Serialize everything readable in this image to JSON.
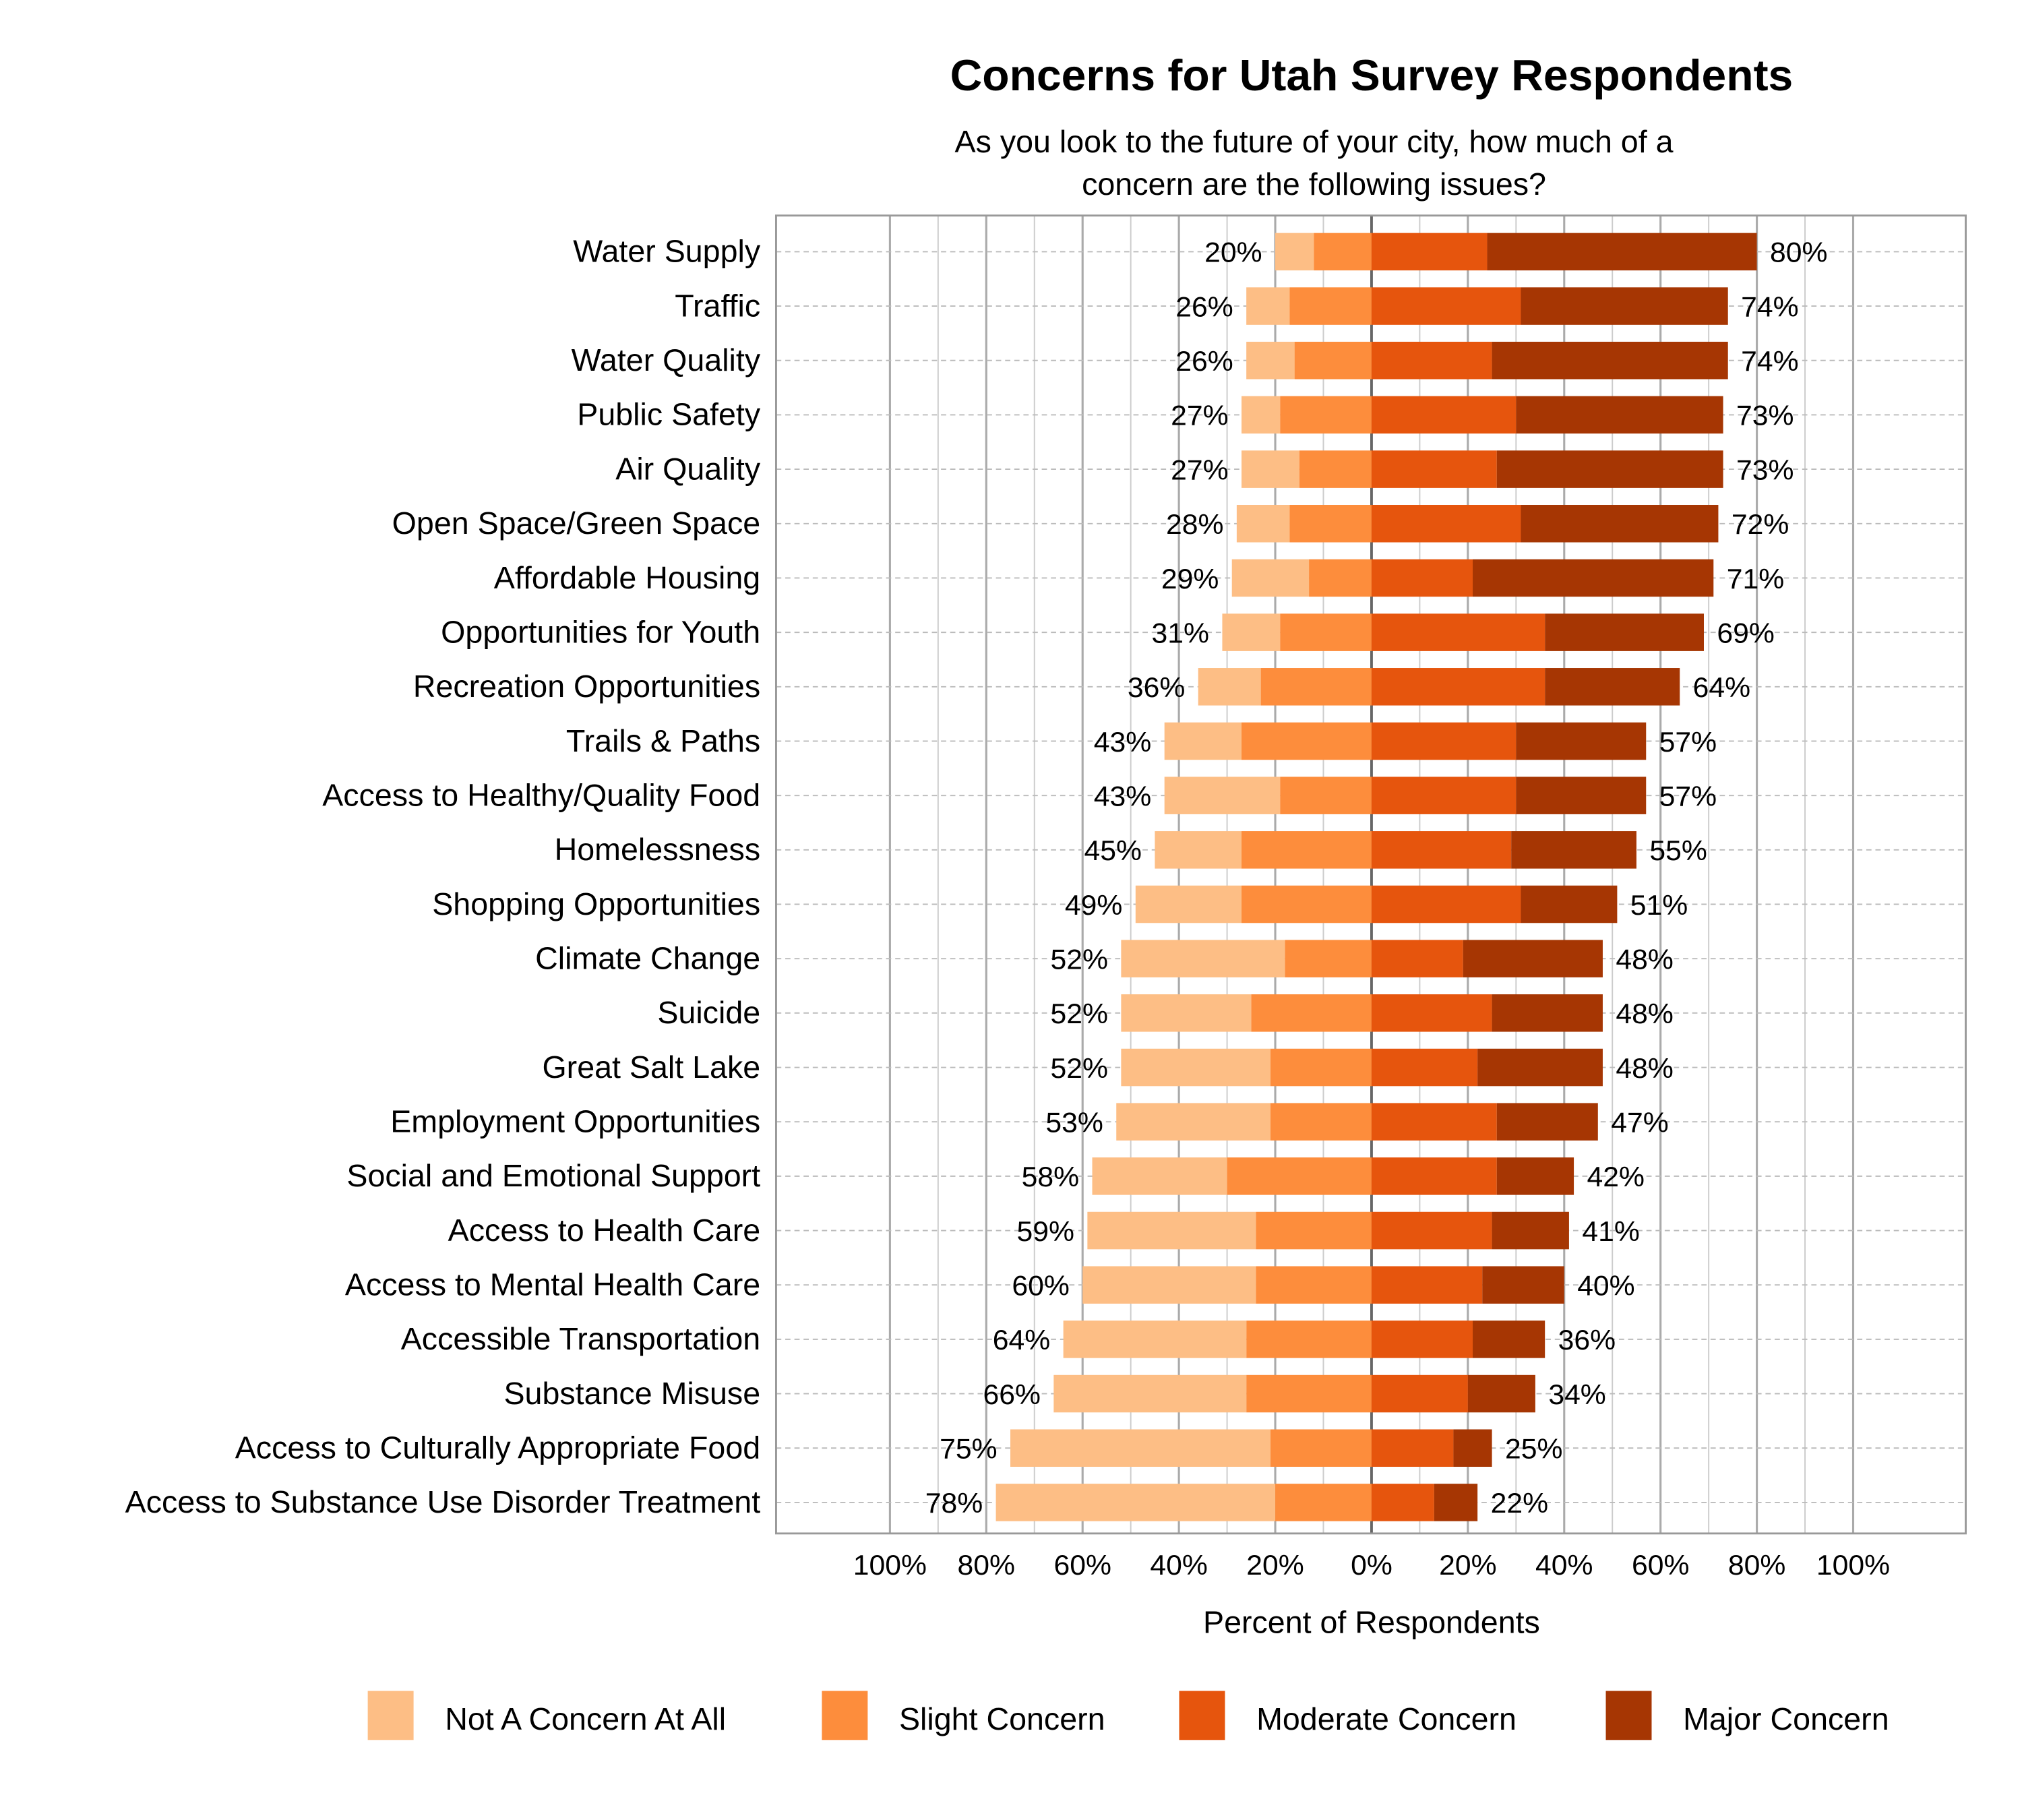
{
  "chart_data": {
    "type": "bar",
    "orientation": "horizontal",
    "stacking": "diverging",
    "title": "Concerns for Utah Survey Respondents",
    "subtitle": [
      "As you look to the future of your city, how much of a",
      "concern are the following issues?"
    ],
    "xlabel": "Percent of Respondents",
    "ylabel": "",
    "xlim": [
      -100,
      100
    ],
    "x_tick_labels": [
      "100%",
      "80%",
      "60%",
      "40%",
      "20%",
      "0%",
      "20%",
      "40%",
      "60%",
      "80%",
      "100%"
    ],
    "x_ticks": [
      -100,
      -80,
      -60,
      -40,
      -20,
      0,
      20,
      40,
      60,
      80,
      100
    ],
    "grid": true,
    "legend_position": "bottom",
    "categories": [
      "Water Supply",
      "Traffic",
      "Water Quality",
      "Public Safety",
      "Air Quality",
      "Open Space/Green Space",
      "Affordable Housing",
      "Opportunities for Youth",
      "Recreation Opportunities",
      "Trails & Paths",
      "Access to Healthy/Quality Food",
      "Homelessness",
      "Shopping Opportunities",
      "Climate Change",
      "Suicide",
      "Great Salt Lake",
      "Employment Opportunities",
      "Social and Emotional Support",
      "Access to Health Care",
      "Access to Mental Health Care",
      "Accessible Transportation",
      "Substance Misuse",
      "Access to Culturally Appropriate Food",
      "Access to Substance Use Disorder Treatment"
    ],
    "series": [
      {
        "name": "Not A Concern At All",
        "side": "negative",
        "color": "#fdbe85",
        "values": [
          8,
          9,
          10,
          8,
          12,
          11,
          16,
          12,
          13,
          16,
          24,
          18,
          22,
          34,
          27,
          31,
          32,
          28,
          35,
          36,
          38,
          40,
          54,
          58
        ]
      },
      {
        "name": "Slight Concern",
        "side": "negative",
        "color": "#fd8d3c",
        "values": [
          12,
          17,
          16,
          19,
          15,
          17,
          13,
          19,
          23,
          27,
          19,
          27,
          27,
          18,
          25,
          21,
          21,
          30,
          24,
          24,
          26,
          26,
          21,
          20
        ]
      },
      {
        "name": "Moderate Concern",
        "side": "positive",
        "color": "#e6550d",
        "values": [
          24,
          31,
          25,
          30,
          26,
          31,
          21,
          36,
          36,
          30,
          30,
          29,
          31,
          19,
          25,
          22,
          26,
          26,
          25,
          23,
          21,
          20,
          17,
          13
        ]
      },
      {
        "name": "Major Concern",
        "side": "positive",
        "color": "#a63603",
        "values": [
          56,
          43,
          49,
          43,
          47,
          41,
          50,
          33,
          28,
          27,
          27,
          26,
          20,
          29,
          23,
          26,
          21,
          16,
          16,
          17,
          15,
          14,
          8,
          9
        ]
      }
    ],
    "negative_total_labels": [
      "20%",
      "26%",
      "26%",
      "27%",
      "27%",
      "28%",
      "29%",
      "31%",
      "36%",
      "43%",
      "43%",
      "45%",
      "49%",
      "52%",
      "52%",
      "52%",
      "53%",
      "58%",
      "59%",
      "60%",
      "64%",
      "66%",
      "75%",
      "78%"
    ],
    "positive_total_labels": [
      "80%",
      "74%",
      "74%",
      "73%",
      "73%",
      "72%",
      "71%",
      "69%",
      "64%",
      "57%",
      "57%",
      "55%",
      "51%",
      "48%",
      "48%",
      "48%",
      "47%",
      "42%",
      "41%",
      "40%",
      "36%",
      "34%",
      "25%",
      "22%"
    ],
    "negative_totals": [
      20,
      26,
      26,
      27,
      27,
      28,
      29,
      31,
      36,
      43,
      43,
      45,
      49,
      52,
      52,
      52,
      53,
      58,
      59,
      60,
      64,
      66,
      75,
      78
    ],
    "positive_totals": [
      80,
      74,
      74,
      73,
      73,
      72,
      71,
      69,
      64,
      57,
      57,
      55,
      51,
      48,
      48,
      48,
      47,
      42,
      41,
      40,
      36,
      34,
      25,
      22
    ]
  }
}
